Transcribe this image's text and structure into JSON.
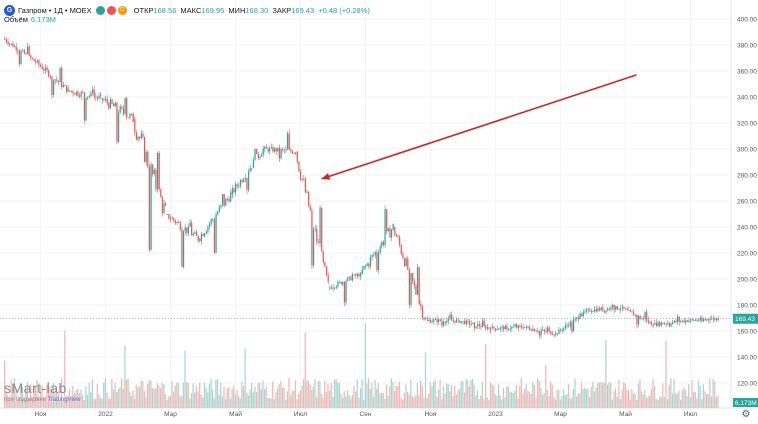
{
  "header": {
    "logo_glyph": "G",
    "symbol": "Газпром • 1Д • MOEX",
    "badges": [
      {
        "glyph": "",
        "color": "#26a69a",
        "icon": "green-dot-icon"
      },
      {
        "glyph": "",
        "color": "#ef5350",
        "icon": "red-dot-icon"
      },
      {
        "glyph": "D",
        "color": "#ff9800",
        "icon": "dividend-icon"
      }
    ],
    "ohlc": {
      "open_label": "ОТКР",
      "open": "168.56",
      "high_label": "МАКС",
      "high": "169.95",
      "low_label": "МИН",
      "low": "168.30",
      "close_label": "ЗАКР",
      "close": "169.43",
      "change": "+0.48 (+0.28%)"
    }
  },
  "volume": {
    "label": "Объём",
    "value": "6.173M"
  },
  "watermark": {
    "text": "sMart-lab",
    "sub_prefix": "при поддержке",
    "sub_brand": "TradingView"
  },
  "price_label": "169.43",
  "volume_label": "6.173M",
  "colors": {
    "up": "#26a69a",
    "down": "#ef5350",
    "arrow": "#d42020"
  },
  "chart_data": {
    "type": "candlestick",
    "title": "Газпром • 1Д • MOEX",
    "ylim": [
      100,
      410
    ],
    "y_ticks": [
      120,
      140,
      160,
      180,
      200,
      220,
      240,
      260,
      280,
      300,
      320,
      340,
      360,
      380,
      400
    ],
    "x_ticks": [
      "Ноя",
      "2022",
      "Мар",
      "Май",
      "Июл",
      "Сен",
      "Ноя",
      "2023",
      "Мар",
      "Май",
      "Июл"
    ],
    "last_price": 169.43,
    "annotation": {
      "type": "arrow",
      "color": "#d42020",
      "from": [
        "2023-05",
        357
      ],
      "to": [
        "2022-07",
        277
      ]
    },
    "price_path_monthly": [
      {
        "month": "2021-10",
        "open": 385,
        "high": 389,
        "low": 360,
        "close": 367
      },
      {
        "month": "2021-11",
        "open": 367,
        "high": 370,
        "low": 330,
        "close": 345
      },
      {
        "month": "2021-12",
        "open": 345,
        "high": 355,
        "low": 310,
        "close": 339
      },
      {
        "month": "2022-01",
        "open": 339,
        "high": 358,
        "low": 290,
        "close": 323
      },
      {
        "month": "2022-02",
        "open": 323,
        "high": 339,
        "low": 190,
        "close": 250
      },
      {
        "month": "2022-03",
        "open": 250,
        "high": 250,
        "low": 194,
        "close": 231
      },
      {
        "month": "2022-04",
        "open": 231,
        "high": 270,
        "low": 205,
        "close": 265
      },
      {
        "month": "2022-05",
        "open": 265,
        "high": 315,
        "low": 262,
        "close": 300
      },
      {
        "month": "2022-06",
        "open": 300,
        "high": 324,
        "low": 290,
        "close": 298
      },
      {
        "month": "2022-07",
        "open": 298,
        "high": 302,
        "low": 180,
        "close": 193
      },
      {
        "month": "2022-08",
        "open": 193,
        "high": 205,
        "low": 174,
        "close": 204
      },
      {
        "month": "2022-09",
        "open": 204,
        "high": 277,
        "low": 200,
        "close": 240
      },
      {
        "month": "2022-10",
        "open": 240,
        "high": 240,
        "low": 156,
        "close": 168
      },
      {
        "month": "2022-11",
        "open": 168,
        "high": 175,
        "low": 162,
        "close": 168
      },
      {
        "month": "2022-12",
        "open": 168,
        "high": 170,
        "low": 158,
        "close": 162
      },
      {
        "month": "2023-01",
        "open": 162,
        "high": 166,
        "low": 159,
        "close": 163
      },
      {
        "month": "2023-02",
        "open": 163,
        "high": 165,
        "low": 154,
        "close": 158
      },
      {
        "month": "2023-03",
        "open": 158,
        "high": 178,
        "low": 156,
        "close": 176
      },
      {
        "month": "2023-04",
        "open": 176,
        "high": 185,
        "low": 173,
        "close": 178
      },
      {
        "month": "2023-05",
        "open": 178,
        "high": 183,
        "low": 162,
        "close": 165
      },
      {
        "month": "2023-06",
        "open": 165,
        "high": 173,
        "low": 163,
        "close": 168
      },
      {
        "month": "2023-07",
        "open": 168,
        "high": 172,
        "low": 166,
        "close": 169.43
      }
    ]
  }
}
